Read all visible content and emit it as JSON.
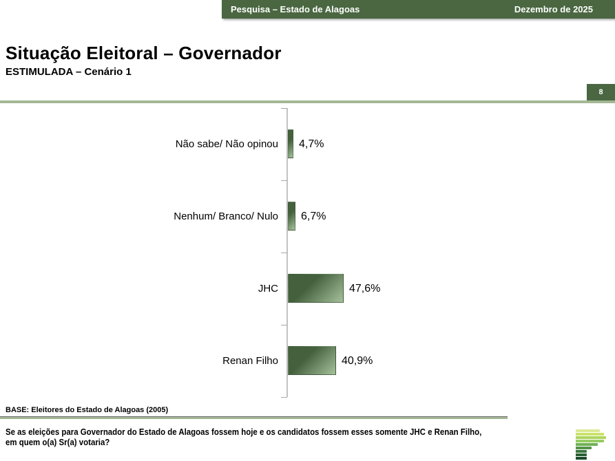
{
  "header": {
    "left_label": "Pesquisa – Estado de Alagoas",
    "right_label": "Dezembro de 2025"
  },
  "slide": {
    "title": "Situação Eleitoral – Governador",
    "subtitle": "ESTIMULADA – Cenário 1",
    "page_number": "8"
  },
  "chart_data": {
    "type": "bar",
    "orientation": "horizontal",
    "title": "",
    "categories": [
      "Não sabe/ Não opinou",
      "Nenhum/ Branco/ Nulo",
      "JHC",
      "Renan Filho"
    ],
    "values": [
      4.7,
      6.7,
      47.6,
      40.9
    ],
    "value_labels": [
      "4,7%",
      "6,7%",
      "47,6%",
      "40,9%"
    ],
    "xlim": [
      0,
      100
    ],
    "grid": false,
    "legend": false,
    "bar_color_dark": "#45603d",
    "bar_color_light": "#a6c19c"
  },
  "footer": {
    "base_note": "BASE: Eleitores do Estado de Alagoas (2005)",
    "question_line1": "Se as eleições para Governador do Estado de Alagoas fossem hoje e os candidatos fossem esses somente JHC e Renan Filho,",
    "question_line2": "em quem o(a) Sr(a) votaria?"
  },
  "colors": {
    "accent_green": "#4a6741",
    "rule_green": "#a3b795",
    "axis_gray": "#c2c2c2"
  },
  "logo": {
    "bars": [
      {
        "width": 35,
        "color": "#dcea94"
      },
      {
        "width": 41,
        "color": "#cbe26b"
      },
      {
        "width": 44,
        "color": "#aed55e"
      },
      {
        "width": 41,
        "color": "#96cc62"
      },
      {
        "width": 32,
        "color": "#6fb055"
      },
      {
        "width": 23,
        "color": "#55944a"
      },
      {
        "width": 16,
        "color": "#3a763e"
      },
      {
        "width": 16,
        "color": "#2a5f34"
      },
      {
        "width": 16,
        "color": "#1b4a2a"
      }
    ]
  }
}
